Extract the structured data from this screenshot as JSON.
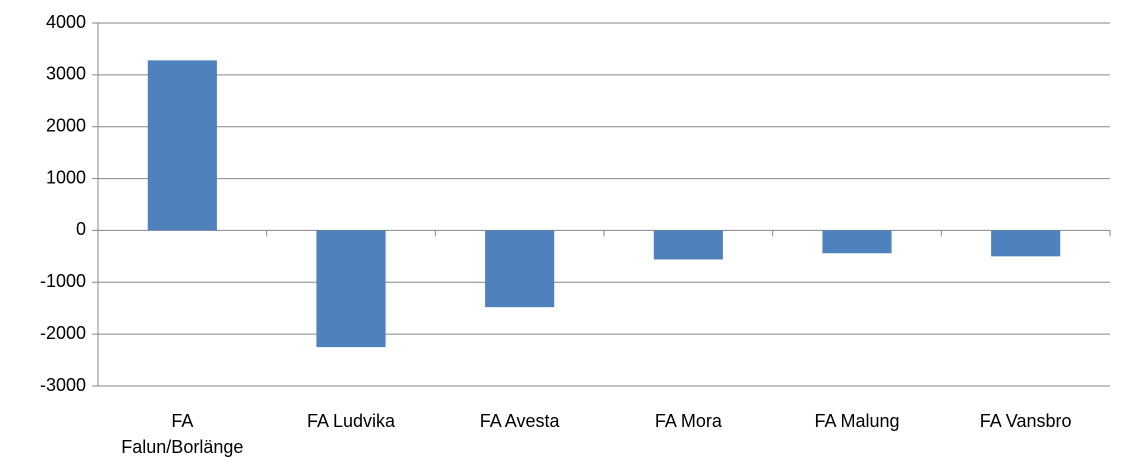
{
  "chart_data": {
    "type": "bar",
    "categories": [
      "FA Falun/Borlänge",
      "FA Ludvika",
      "FA Avesta",
      "FA Mora",
      "FA Malung",
      "FA Vansbro"
    ],
    "values": [
      3280,
      -2250,
      -1480,
      -560,
      -440,
      -500
    ],
    "color": "#4f81bd",
    "ylim": [
      -3000,
      4000
    ],
    "yticks": [
      -3000,
      -2000,
      -1000,
      0,
      1000,
      2000,
      3000,
      4000
    ],
    "grid": true
  }
}
